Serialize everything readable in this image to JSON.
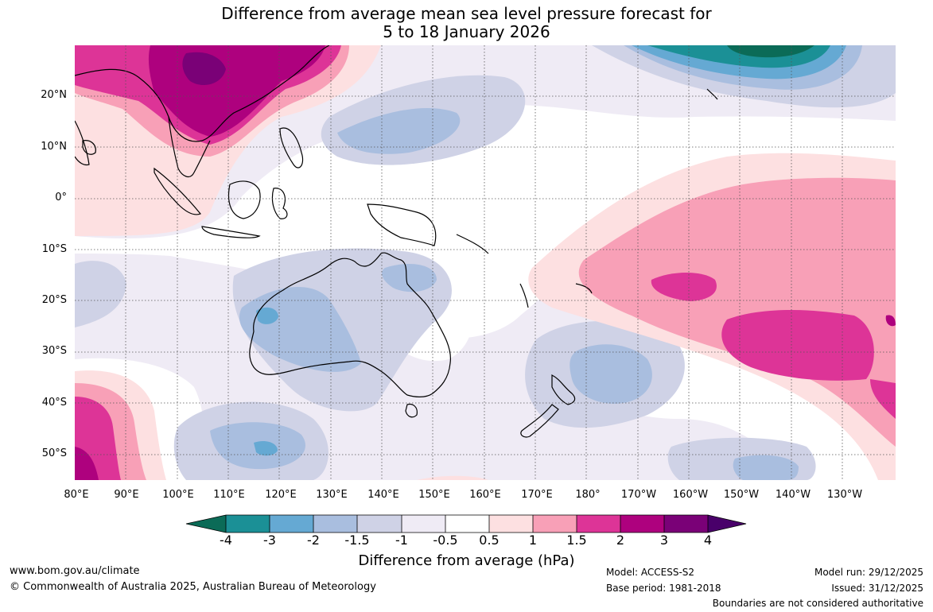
{
  "title": {
    "line1": "Difference from average mean sea level pressure forecast for",
    "line2": "5 to 18 January 2026"
  },
  "axes": {
    "lat_labels": [
      "20°N",
      "10°N",
      "0°",
      "10°S",
      "20°S",
      "30°S",
      "40°S",
      "50°S"
    ],
    "lon_labels": [
      "80°E",
      "90°E",
      "100°E",
      "110°E",
      "120°E",
      "130°E",
      "140°E",
      "150°E",
      "160°E",
      "170°E",
      "180°",
      "170°W",
      "160°W",
      "150°W",
      "140°W",
      "130°W"
    ]
  },
  "colorbar": {
    "ticks": [
      "-4",
      "-3",
      "-2",
      "-1.5",
      "-1",
      "-0.5",
      "0.5",
      "1",
      "1.5",
      "2",
      "3",
      "4"
    ],
    "label": "Difference from average (hPa)",
    "colors": {
      "lt_minus4": "#0b6b57",
      "minus4_minus3": "#1b9096",
      "minus3_minus2": "#65a9d3",
      "minus2_minus1_5": "#a9bedf",
      "minus1_5_minus1": "#cfd2e6",
      "minus1_minus0_5": "#efebf5",
      "minus0_5_0_5": "#ffffff",
      "p0_5_1": "#fde0e1",
      "p1_1_5": "#f8a0b7",
      "p1_5_2": "#dd3497",
      "p2_3": "#ae017e",
      "p3_4": "#7a0177",
      "gt_4": "#49006a"
    }
  },
  "footer": {
    "url": "www.bom.gov.au/climate",
    "copyright": "© Commonwealth of Australia 2025, Australian Bureau of Meteorology",
    "model": "Model: ACCESS-S2",
    "base_period": "Base period: 1981-2018",
    "model_run": "Model run: 29/12/2025",
    "issued": "Issued: 31/12/2025",
    "disclaimer": "Boundaries are not considered authoritative"
  }
}
